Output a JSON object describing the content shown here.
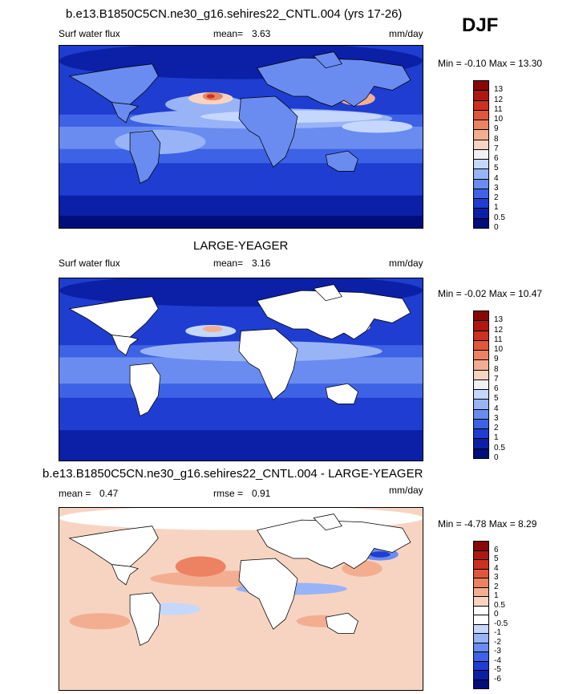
{
  "season": "DJF",
  "units": "mm/day",
  "palette": {
    "seq": [
      "#000d7a",
      "#0b20a6",
      "#1f3dd0",
      "#3e62e6",
      "#6a8cf0",
      "#98b4f7",
      "#c5d7fc",
      "#f0f0f5",
      "#f7d4c2",
      "#f3ae91",
      "#ec8262",
      "#e0573b",
      "#cc3120",
      "#ae1810",
      "#870808"
    ],
    "diff": [
      "#000d7a",
      "#0b20a6",
      "#1f3dd0",
      "#3e62e6",
      "#6a8cf0",
      "#98b4f7",
      "#c5d7fc",
      "#ffffff",
      "#ffffff",
      "#f7d4c2",
      "#f3ae91",
      "#ec8262",
      "#e0573b",
      "#cc3120",
      "#ae1810",
      "#870808"
    ],
    "land_fill": "#ffffff",
    "coast_line": "#000000"
  },
  "panels": [
    {
      "title": "b.e13.B1850C5CN.ne30_g16.sehires22_CNTL.004 (yrs 17-26)",
      "left_label": "Surf water flux",
      "stat_label": "mean=",
      "stat_value": "3.63",
      "rmse_label": "",
      "rmse_value": "",
      "units": "mm/day",
      "minmax": "Min =  -0.10 Max =  13.30",
      "colorbar_ticks": [
        "13",
        "12",
        "11",
        "10",
        "9",
        "8",
        "7",
        "6",
        "5",
        "4",
        "3",
        "2",
        "1",
        "0.5",
        "0"
      ],
      "land_filled": true
    },
    {
      "title": "LARGE-YEAGER",
      "left_label": "Surf water flux",
      "stat_label": "mean=",
      "stat_value": "3.16",
      "rmse_label": "",
      "rmse_value": "",
      "units": "mm/day",
      "minmax": "Min =  -0.02 Max =  10.47",
      "colorbar_ticks": [
        "13",
        "12",
        "11",
        "10",
        "9",
        "8",
        "7",
        "6",
        "5",
        "4",
        "3",
        "2",
        "1",
        "0.5",
        "0"
      ],
      "land_filled": false
    },
    {
      "title": "b.e13.B1850C5CN.ne30_g16.sehires22_CNTL.004 - LARGE-YEAGER",
      "left_label": "mean =",
      "stat_label": "",
      "stat_value": "0.47",
      "rmse_label": "rmse =",
      "rmse_value": "0.91",
      "units": "mm/day",
      "minmax": "Min =  -4.78 Max =   8.29",
      "colorbar_ticks": [
        "6",
        "5",
        "4",
        "3",
        "2",
        "1",
        "0.5",
        "0",
        "-0.5",
        "-1",
        "-2",
        "-3",
        "-4",
        "-5",
        "-6"
      ],
      "land_filled": false
    }
  ]
}
